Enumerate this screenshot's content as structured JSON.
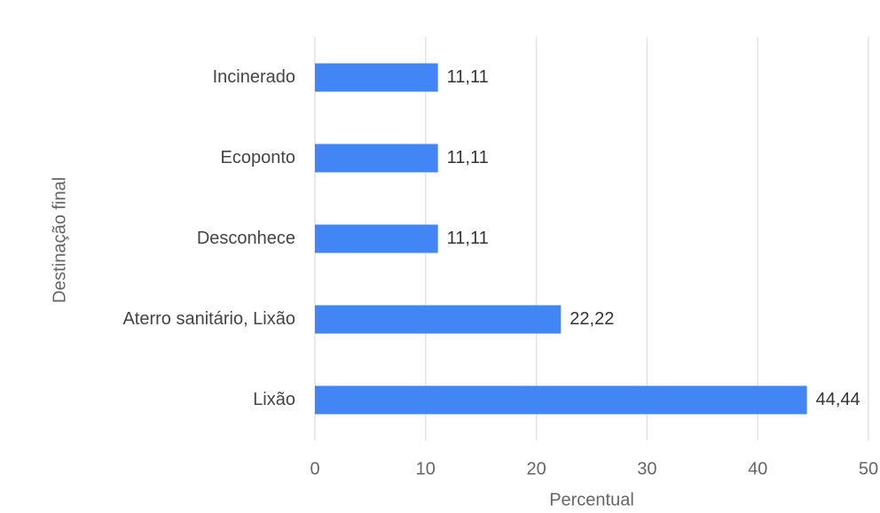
{
  "chart_data": {
    "type": "bar",
    "orientation": "horizontal",
    "categories": [
      "Incinerado",
      "Ecoponto",
      "Desconhece",
      "Aterro sanitário, Lixão",
      "Lixão"
    ],
    "values": [
      11.11,
      11.11,
      11.11,
      22.22,
      44.44
    ],
    "value_labels": [
      "11,11",
      "11,11",
      "11,11",
      "22,22",
      "44,44"
    ],
    "color": "#4285f4",
    "xlabel": "Percentual",
    "ylabel": "Destinação final",
    "xlim": [
      0,
      50
    ],
    "xticks": [
      0,
      10,
      20,
      30,
      40,
      50
    ],
    "grid": true
  }
}
